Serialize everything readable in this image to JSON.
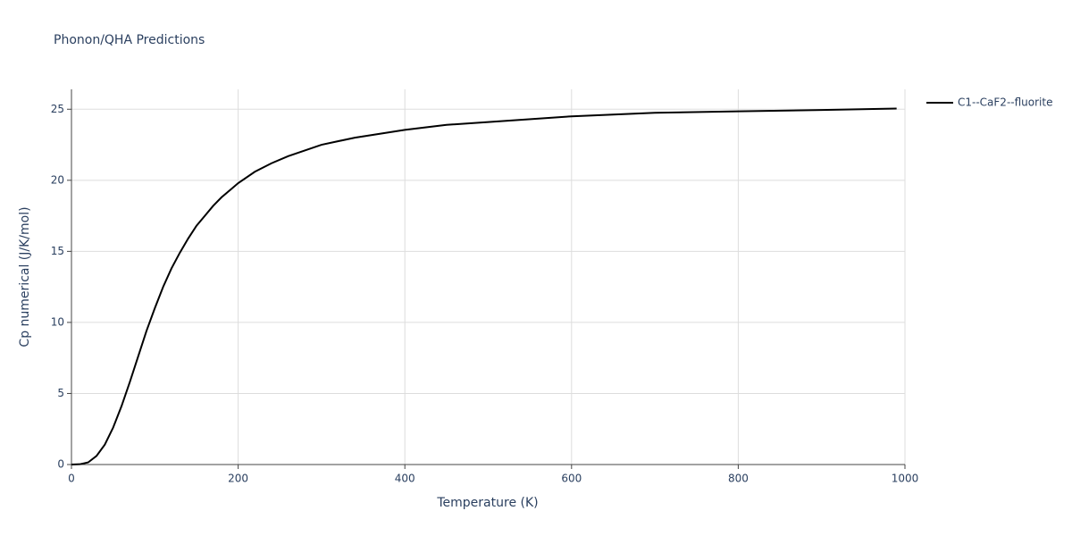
{
  "chart_data": {
    "type": "line",
    "title": "Phonon/QHA Predictions",
    "x_label": "Temperature (K)",
    "y_label": "Cp numerical (J/K/mol)",
    "x": [
      0,
      10,
      20,
      30,
      40,
      50,
      60,
      70,
      80,
      90,
      100,
      110,
      120,
      130,
      140,
      150,
      160,
      170,
      180,
      190,
      200,
      220,
      240,
      260,
      280,
      300,
      340,
      400,
      450,
      500,
      600,
      700,
      800,
      900,
      990
    ],
    "series": [
      {
        "name": "C1--CaF2--fluorite",
        "color": "#000000",
        "values": [
          0,
          0.02,
          0.15,
          0.6,
          1.4,
          2.6,
          4.1,
          5.8,
          7.6,
          9.4,
          11.0,
          12.5,
          13.8,
          14.9,
          15.9,
          16.8,
          17.5,
          18.2,
          18.8,
          19.3,
          19.8,
          20.6,
          21.2,
          21.7,
          22.1,
          22.5,
          23.0,
          23.55,
          23.9,
          24.1,
          24.5,
          24.75,
          24.85,
          24.95,
          25.05
        ]
      }
    ],
    "xlim": [
      0,
      1000
    ],
    "xticks": [
      0,
      200,
      400,
      600,
      800,
      1000
    ],
    "ylim": [
      0,
      26.4
    ],
    "yticks": [
      0,
      5,
      10,
      15,
      20,
      25
    ],
    "grid": true
  }
}
